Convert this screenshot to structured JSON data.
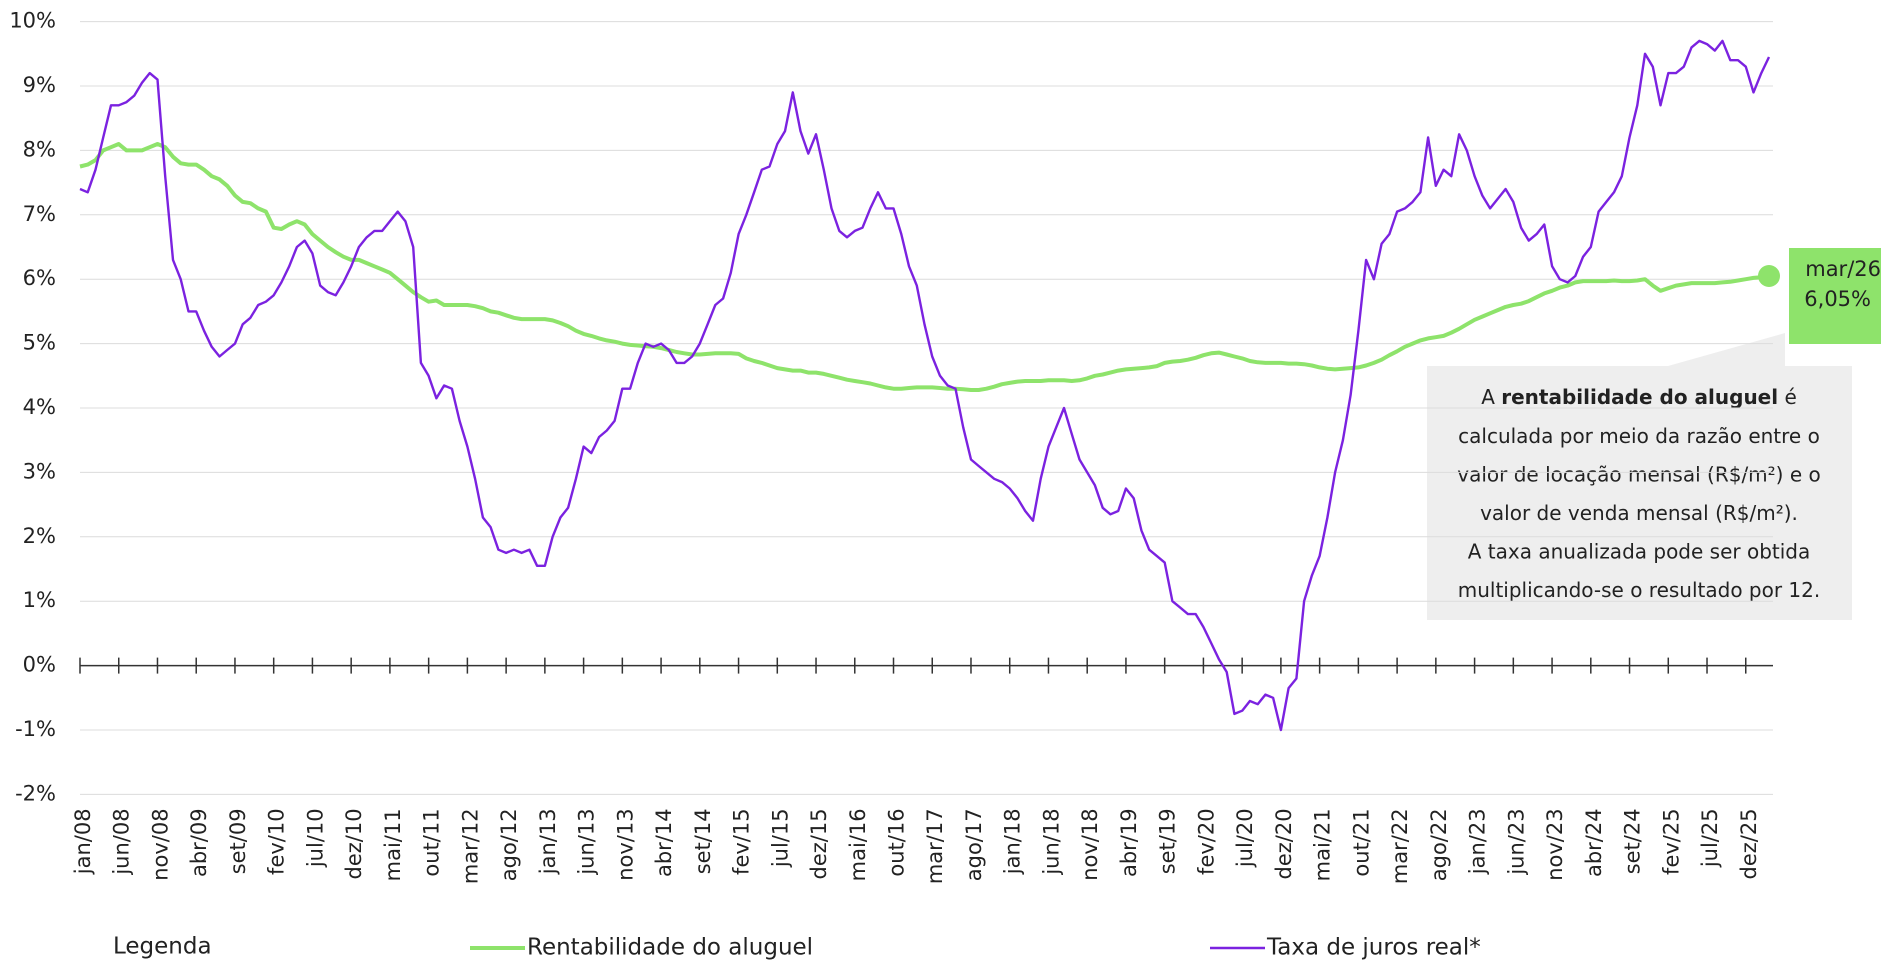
{
  "chart_data": {
    "type": "line",
    "categories": [
      "jan/08",
      null,
      null,
      null,
      null,
      "jun/08",
      null,
      null,
      null,
      null,
      "nov/08",
      null,
      null,
      null,
      null,
      "abr/09",
      null,
      null,
      null,
      null,
      "set/09",
      null,
      null,
      null,
      null,
      "fev/10",
      null,
      null,
      null,
      null,
      "jul/10",
      null,
      null,
      null,
      null,
      "dez/10",
      null,
      null,
      null,
      null,
      "mai/11",
      null,
      null,
      null,
      null,
      "out/11",
      null,
      null,
      null,
      null,
      "mar/12",
      null,
      null,
      null,
      null,
      "ago/12",
      null,
      null,
      null,
      null,
      "jan/13",
      null,
      null,
      null,
      null,
      "jun/13",
      null,
      null,
      null,
      null,
      "nov/13",
      null,
      null,
      null,
      null,
      "abr/14",
      null,
      null,
      null,
      null,
      "set/14",
      null,
      null,
      null,
      null,
      "fev/15",
      null,
      null,
      null,
      null,
      "jul/15",
      null,
      null,
      null,
      null,
      "dez/15",
      null,
      null,
      null,
      null,
      "mai/16",
      null,
      null,
      null,
      null,
      "out/16",
      null,
      null,
      null,
      null,
      "mar/17",
      null,
      null,
      null,
      null,
      "ago/17",
      null,
      null,
      null,
      null,
      "jan/18",
      null,
      null,
      null,
      null,
      "jun/18",
      null,
      null,
      null,
      null,
      "nov/18",
      null,
      null,
      null,
      null,
      "abr/19",
      null,
      null,
      null,
      null,
      "set/19",
      null,
      null,
      null,
      null,
      "fev/20",
      null,
      null,
      null,
      null,
      "jul/20",
      null,
      null,
      null,
      null,
      "dez/20",
      null,
      null,
      null,
      null,
      "mai/21",
      null,
      null,
      null,
      null,
      "out/21",
      null,
      null,
      null,
      null,
      "mar/22",
      null,
      null,
      null,
      null,
      "ago/22",
      null,
      null,
      null,
      null,
      "jan/23",
      null,
      null,
      null,
      null,
      "jun/23",
      null,
      null,
      null,
      null,
      "nov/23",
      null,
      null,
      null,
      null,
      "abr/24",
      null,
      null,
      null,
      null,
      "set/24",
      null,
      null,
      null,
      null,
      "fev/25",
      null,
      null,
      null,
      null,
      "jul/25",
      null,
      null,
      null,
      null,
      "dez/25",
      null,
      null,
      null
    ],
    "series": [
      {
        "name": "Rentabilidade do aluguel",
        "color": "#8ee36b",
        "values": [
          7.75,
          7.78,
          7.85,
          8.0,
          8.05,
          8.1,
          8.0,
          8.0,
          8.0,
          8.05,
          8.1,
          8.05,
          7.9,
          7.8,
          7.78,
          7.78,
          7.7,
          7.6,
          7.55,
          7.45,
          7.3,
          7.2,
          7.18,
          7.1,
          7.05,
          6.8,
          6.78,
          6.85,
          6.9,
          6.85,
          6.7,
          6.6,
          6.5,
          6.42,
          6.35,
          6.3,
          6.3,
          6.25,
          6.2,
          6.15,
          6.1,
          6.0,
          5.9,
          5.8,
          5.72,
          5.65,
          5.67,
          5.6,
          5.6,
          5.6,
          5.6,
          5.58,
          5.55,
          5.5,
          5.48,
          5.44,
          5.4,
          5.38,
          5.38,
          5.38,
          5.38,
          5.36,
          5.32,
          5.27,
          5.2,
          5.15,
          5.12,
          5.08,
          5.05,
          5.03,
          5.0,
          4.98,
          4.97,
          4.96,
          4.95,
          4.93,
          4.9,
          4.87,
          4.85,
          4.83,
          4.83,
          4.84,
          4.85,
          4.85,
          4.85,
          4.84,
          4.77,
          4.73,
          4.7,
          4.66,
          4.62,
          4.6,
          4.58,
          4.58,
          4.55,
          4.55,
          4.53,
          4.5,
          4.47,
          4.44,
          4.42,
          4.4,
          4.38,
          4.35,
          4.32,
          4.3,
          4.3,
          4.31,
          4.32,
          4.32,
          4.32,
          4.31,
          4.3,
          4.3,
          4.29,
          4.28,
          4.28,
          4.3,
          4.33,
          4.37,
          4.39,
          4.41,
          4.42,
          4.42,
          4.42,
          4.43,
          4.43,
          4.43,
          4.42,
          4.43,
          4.46,
          4.5,
          4.52,
          4.55,
          4.58,
          4.6,
          4.61,
          4.62,
          4.63,
          4.65,
          4.7,
          4.72,
          4.73,
          4.75,
          4.78,
          4.82,
          4.85,
          4.86,
          4.83,
          4.8,
          4.77,
          4.73,
          4.71,
          4.7,
          4.7,
          4.7,
          4.69,
          4.69,
          4.68,
          4.66,
          4.63,
          4.61,
          4.6,
          4.61,
          4.62,
          4.63,
          4.66,
          4.7,
          4.75,
          4.82,
          4.88,
          4.95,
          5.0,
          5.05,
          5.08,
          5.1,
          5.12,
          5.17,
          5.23,
          5.3,
          5.37,
          5.42,
          5.47,
          5.52,
          5.57,
          5.6,
          5.62,
          5.66,
          5.72,
          5.78,
          5.82,
          5.87,
          5.9,
          5.95,
          5.97,
          5.97,
          5.97,
          5.97,
          5.98,
          5.97,
          5.97,
          5.98,
          6.0,
          5.9,
          5.82,
          5.86,
          5.9,
          5.92,
          5.94,
          5.94,
          5.94,
          5.94,
          5.95,
          5.96,
          5.98,
          6.0,
          6.02,
          6.03,
          6.05
        ]
      },
      {
        "name": "Taxa de juros real*",
        "color": "#7b22e0",
        "values": [
          7.4,
          7.35,
          7.7,
          8.2,
          8.7,
          8.7,
          8.75,
          8.85,
          9.05,
          9.2,
          9.1,
          7.6,
          6.3,
          6.0,
          5.5,
          5.5,
          5.2,
          4.95,
          4.8,
          4.9,
          5.0,
          5.3,
          5.4,
          5.6,
          5.65,
          5.75,
          5.95,
          6.2,
          6.5,
          6.6,
          6.4,
          5.9,
          5.8,
          5.75,
          5.95,
          6.2,
          6.5,
          6.65,
          6.75,
          6.75,
          6.9,
          7.05,
          6.9,
          6.5,
          4.7,
          4.5,
          4.15,
          4.35,
          4.3,
          3.8,
          3.4,
          2.9,
          2.3,
          2.15,
          1.8,
          1.75,
          1.8,
          1.75,
          1.8,
          1.55,
          1.55,
          2.0,
          2.3,
          2.45,
          2.9,
          3.4,
          3.3,
          3.55,
          3.65,
          3.8,
          4.3,
          4.3,
          4.7,
          5.0,
          4.95,
          5.0,
          4.9,
          4.7,
          4.7,
          4.8,
          5.0,
          5.3,
          5.6,
          5.7,
          6.1,
          6.7,
          7.0,
          7.35,
          7.7,
          7.75,
          8.1,
          8.3,
          8.9,
          8.3,
          7.95,
          8.25,
          7.7,
          7.1,
          6.75,
          6.65,
          6.75,
          6.8,
          7.1,
          7.35,
          7.1,
          7.1,
          6.7,
          6.2,
          5.9,
          5.3,
          4.8,
          4.5,
          4.35,
          4.3,
          3.7,
          3.2,
          3.1,
          3.0,
          2.9,
          2.85,
          2.75,
          2.6,
          2.4,
          2.25,
          2.9,
          3.4,
          3.7,
          4.0,
          3.6,
          3.2,
          3.0,
          2.8,
          2.45,
          2.35,
          2.4,
          2.75,
          2.6,
          2.1,
          1.8,
          1.7,
          1.6,
          1.0,
          0.9,
          0.8,
          0.8,
          0.6,
          0.35,
          0.1,
          -0.1,
          -0.75,
          -0.7,
          -0.55,
          -0.6,
          -0.45,
          -0.5,
          -1.0,
          -0.35,
          -0.2,
          1.0,
          1.4,
          1.7,
          2.3,
          3.0,
          3.5,
          4.2,
          5.2,
          6.3,
          6.0,
          6.55,
          6.7,
          7.05,
          7.1,
          7.2,
          7.35,
          8.2,
          7.45,
          7.7,
          7.6,
          8.25,
          8.0,
          7.6,
          7.3,
          7.1,
          7.25,
          7.4,
          7.2,
          6.8,
          6.6,
          6.7,
          6.85,
          6.2,
          6.0,
          5.95,
          6.05,
          6.35,
          6.5,
          7.05,
          7.2,
          7.35,
          7.6,
          8.2,
          8.7,
          9.5,
          9.3,
          8.7,
          9.2,
          9.2,
          9.3,
          9.6,
          9.7,
          9.65,
          9.55,
          9.7,
          9.4,
          9.4,
          9.3,
          8.9,
          9.2,
          9.45
        ]
      }
    ],
    "ylim": [
      -2,
      10
    ],
    "yticks": [
      {
        "value": -2,
        "label": "-2%"
      },
      {
        "value": -1,
        "label": "-1%"
      },
      {
        "value": 0,
        "label": "0%"
      },
      {
        "value": 1,
        "label": "1%"
      },
      {
        "value": 2,
        "label": "2%"
      },
      {
        "value": 3,
        "label": "3%"
      },
      {
        "value": 4,
        "label": "4%"
      },
      {
        "value": 5,
        "label": "5%"
      },
      {
        "value": 6,
        "label": "6%"
      },
      {
        "value": 7,
        "label": "7%"
      },
      {
        "value": 8,
        "label": "8%"
      },
      {
        "value": 9,
        "label": "9%"
      },
      {
        "value": 10,
        "label": "10%"
      }
    ],
    "grid": true,
    "legend_title": "Legenda",
    "end_marker": {
      "label": "mar/26",
      "value_label": "6,05%"
    },
    "note": {
      "first_pre": "A ",
      "first_bold": "rentabilidade do aluguel",
      "first_post": " é",
      "lines": [
        "calculada por meio da razão entre o",
        "valor de locação mensal (R$/m²) e o",
        "valor de venda mensal (R$/m²).",
        "A taxa anualizada pode ser obtida",
        "multiplicando-se  o resultado por 12."
      ]
    }
  }
}
